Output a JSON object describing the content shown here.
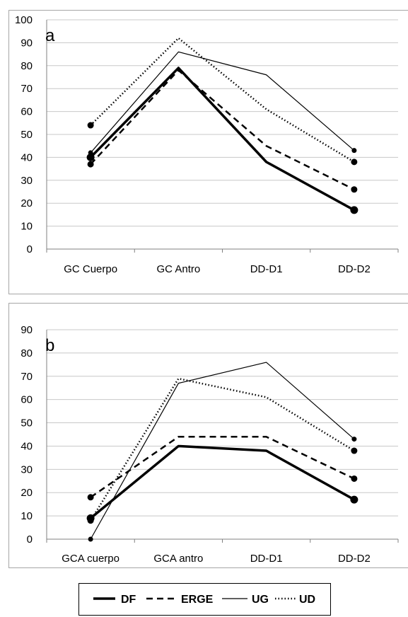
{
  "legend": [
    {
      "name": "DF",
      "style": "thick-solid"
    },
    {
      "name": "ERGE",
      "style": "dashed"
    },
    {
      "name": "UG",
      "style": "thin-solid"
    },
    {
      "name": "UD",
      "style": "dotted"
    }
  ],
  "colors": {
    "series": "#000000",
    "grid": "#c8c8c8",
    "frame": "#a6a6a6"
  },
  "chart_data": [
    {
      "type": "line",
      "panel_label": "a",
      "categories": [
        "GC Cuerpo",
        "GC Antro",
        "DD-D1",
        "DD-D2"
      ],
      "ylim": [
        0,
        100
      ],
      "yticks": [
        "0",
        "10",
        "20",
        "30",
        "40",
        "50",
        "60",
        "70",
        "80",
        "90",
        "100"
      ],
      "grid": true,
      "series": [
        {
          "name": "DF",
          "values": [
            40,
            79,
            38,
            17
          ]
        },
        {
          "name": "ERGE",
          "values": [
            37,
            78,
            45,
            26
          ]
        },
        {
          "name": "UG",
          "values": [
            42,
            86,
            76,
            43
          ]
        },
        {
          "name": "UD",
          "values": [
            54,
            92,
            61,
            38
          ]
        }
      ]
    },
    {
      "type": "line",
      "panel_label": "b",
      "categories": [
        "GCA cuerpo",
        "GCA antro",
        "DD-D1",
        "DD-D2"
      ],
      "ylim": [
        0,
        90
      ],
      "yticks": [
        "0",
        "10",
        "20",
        "30",
        "40",
        "50",
        "60",
        "70",
        "80",
        "90"
      ],
      "grid": true,
      "series": [
        {
          "name": "DF",
          "values": [
            9,
            40,
            38,
            17
          ]
        },
        {
          "name": "ERGE",
          "values": [
            18,
            44,
            44,
            26
          ]
        },
        {
          "name": "UG",
          "values": [
            0,
            67,
            76,
            43
          ]
        },
        {
          "name": "UD",
          "values": [
            8,
            69,
            61,
            38
          ]
        }
      ]
    }
  ]
}
